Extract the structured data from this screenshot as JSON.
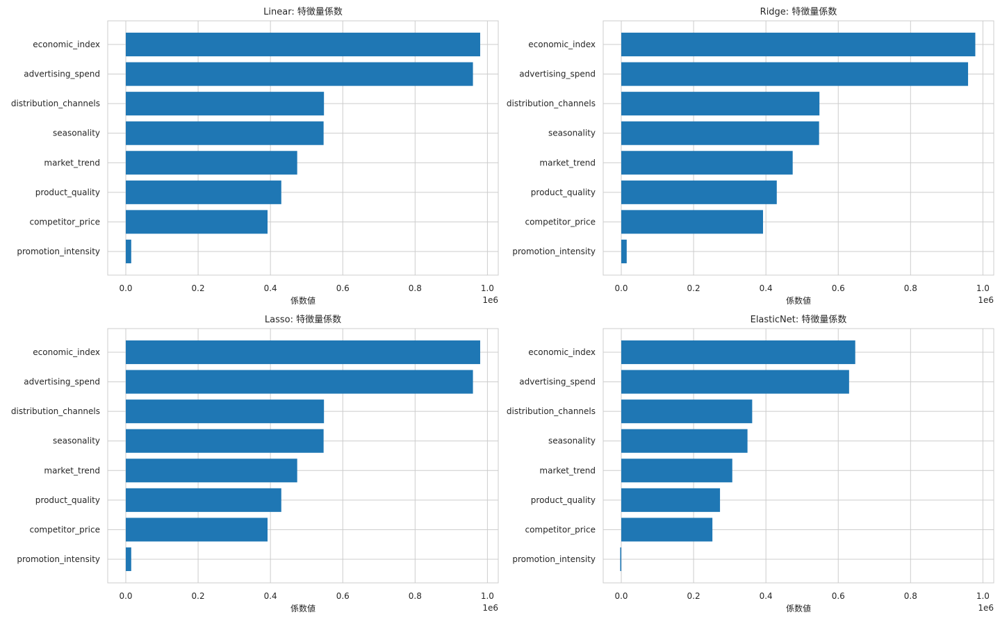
{
  "chart_data": [
    {
      "type": "bar",
      "orientation": "horizontal",
      "title": "Linear: 特徴量係数",
      "xlabel": "係数値",
      "ylabel": "",
      "x_offset_label": "1e6",
      "x_ticks": [
        "0.0",
        "0.2",
        "0.4",
        "0.6",
        "0.8",
        "1.0"
      ],
      "xlim": [
        -0.05,
        1.03
      ],
      "grid": true,
      "color": "#1f77b4",
      "categories": [
        "promotion_intensity",
        "competitor_price",
        "product_quality",
        "market_trend",
        "seasonality",
        "distribution_channels",
        "advertising_spend",
        "economic_index"
      ],
      "values": [
        0.015,
        0.392,
        0.43,
        0.474,
        0.547,
        0.548,
        0.96,
        0.98
      ]
    },
    {
      "type": "bar",
      "orientation": "horizontal",
      "title": "Ridge: 特徴量係数",
      "xlabel": "係数値",
      "ylabel": "",
      "x_offset_label": "1e6",
      "x_ticks": [
        "0.0",
        "0.2",
        "0.4",
        "0.6",
        "0.8",
        "1.0"
      ],
      "xlim": [
        -0.05,
        1.03
      ],
      "grid": true,
      "color": "#1f77b4",
      "categories": [
        "promotion_intensity",
        "competitor_price",
        "product_quality",
        "market_trend",
        "seasonality",
        "distribution_channels",
        "advertising_spend",
        "economic_index"
      ],
      "values": [
        0.015,
        0.392,
        0.43,
        0.474,
        0.547,
        0.548,
        0.959,
        0.979
      ]
    },
    {
      "type": "bar",
      "orientation": "horizontal",
      "title": "Lasso: 特徴量係数",
      "xlabel": "係数値",
      "ylabel": "",
      "x_offset_label": "1e6",
      "x_ticks": [
        "0.0",
        "0.2",
        "0.4",
        "0.6",
        "0.8",
        "1.0"
      ],
      "xlim": [
        -0.05,
        1.03
      ],
      "grid": true,
      "color": "#1f77b4",
      "categories": [
        "promotion_intensity",
        "competitor_price",
        "product_quality",
        "market_trend",
        "seasonality",
        "distribution_channels",
        "advertising_spend",
        "economic_index"
      ],
      "values": [
        0.015,
        0.392,
        0.43,
        0.474,
        0.547,
        0.548,
        0.96,
        0.98
      ]
    },
    {
      "type": "bar",
      "orientation": "horizontal",
      "title": "ElasticNet: 特徴量係数",
      "xlabel": "係数値",
      "ylabel": "",
      "x_offset_label": "1e6",
      "x_ticks": [
        "0.0",
        "0.2",
        "0.4",
        "0.6",
        "0.8",
        "1.0"
      ],
      "xlim": [
        -0.05,
        1.03
      ],
      "grid": true,
      "color": "#1f77b4",
      "categories": [
        "promotion_intensity",
        "competitor_price",
        "product_quality",
        "market_trend",
        "seasonality",
        "distribution_channels",
        "advertising_spend",
        "economic_index"
      ],
      "values": [
        -0.003,
        0.252,
        0.273,
        0.307,
        0.349,
        0.362,
        0.63,
        0.647
      ]
    }
  ]
}
